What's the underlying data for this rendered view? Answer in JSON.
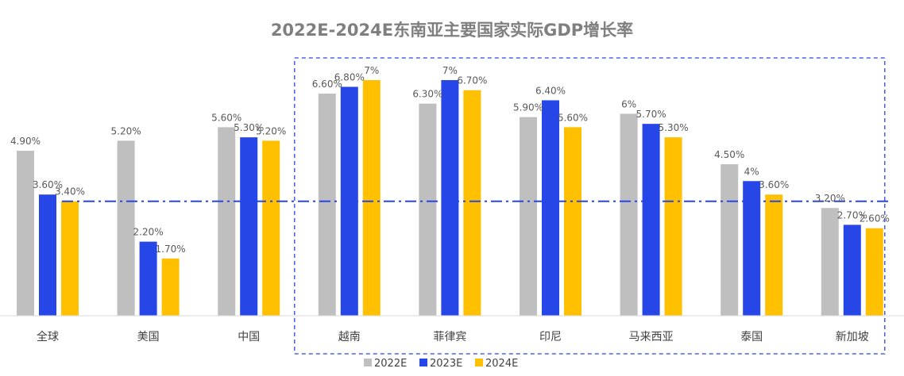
{
  "chart_data": {
    "type": "bar",
    "title": "2022E-2024E东南亚主要国家实际GDP增长率",
    "categories": [
      "全球",
      "美国",
      "中国",
      "越南",
      "菲律宾",
      "印尼",
      "马来西亚",
      "泰国",
      "新加坡"
    ],
    "series": [
      {
        "name": "2022E",
        "color": "#bfbfbf",
        "values": [
          4.9,
          5.2,
          5.6,
          6.6,
          6.3,
          5.9,
          6.0,
          4.5,
          3.2
        ],
        "labels": [
          "4.90%",
          "5.20%",
          "5.60%",
          "6.60%",
          "6.30%",
          "5.90%",
          "6%",
          "4.50%",
          "3.20%"
        ]
      },
      {
        "name": "2023E",
        "color": "#2746e8",
        "values": [
          3.6,
          2.2,
          5.3,
          6.8,
          7.0,
          6.4,
          5.7,
          4.0,
          2.7
        ],
        "labels": [
          "3.60%",
          "2.20%",
          "5.30%",
          "6.80%",
          "7%",
          "6.40%",
          "5.70%",
          "4%",
          "2.70%"
        ]
      },
      {
        "name": "2024E",
        "color": "#ffc000",
        "values": [
          3.4,
          1.7,
          5.2,
          7.0,
          6.7,
          5.6,
          5.3,
          3.6,
          2.6
        ],
        "labels": [
          "3.40%",
          "1.70%",
          "5.20%",
          "7%",
          "6.70%",
          "5.60%",
          "5.30%",
          "3.60%",
          "2.60%"
        ]
      }
    ],
    "reference_line": {
      "value": 3.4,
      "style": "dash-dot",
      "color": "#2746e8"
    },
    "highlight_box": {
      "from_category": "越南",
      "to_category": "新加坡",
      "style": "dashed",
      "color": "#2746e8"
    },
    "ylim": [
      0,
      7.4
    ],
    "grid": false,
    "legend": "bottom-center"
  }
}
